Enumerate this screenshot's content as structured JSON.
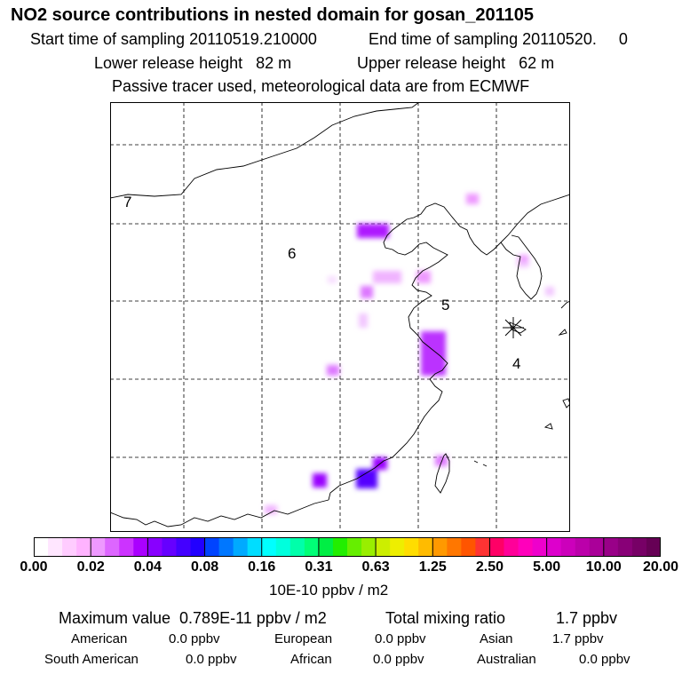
{
  "title": "NO2 source contributions in nested domain for gosan_201105",
  "sampling": {
    "start": "Start time of sampling 20110519.210000",
    "end": "End time of sampling 20110520.     0"
  },
  "release": {
    "lower": "Lower release height   82 m",
    "upper": "Upper release height   62 m"
  },
  "tracer_note": "Passive tracer used, meteorological data are from ECMWF",
  "map": {
    "region_labels": [
      "7",
      "6",
      "5",
      "4"
    ],
    "receptor_marker": "receptor-star-icon"
  },
  "color_scale": {
    "ticks": [
      "0.00",
      "0.02",
      "0.04",
      "0.08",
      "0.16",
      "0.31",
      "0.63",
      "1.25",
      "2.50",
      "5.00",
      "10.00",
      "20.00"
    ],
    "colors": [
      "#ffffff",
      "#ffe6ff",
      "#ffccff",
      "#ffb3ff",
      "#ee99ff",
      "#dd66ff",
      "#cc33ff",
      "#aa00ff",
      "#8800ff",
      "#6600ff",
      "#4400ff",
      "#2200ff",
      "#0044ff",
      "#0077ff",
      "#00aaff",
      "#00ddff",
      "#00ffff",
      "#00ffdd",
      "#00ffaa",
      "#00ff77",
      "#00ee44",
      "#22ee00",
      "#66ee00",
      "#99ee00",
      "#ccee00",
      "#eeee00",
      "#ffdd00",
      "#ffbb00",
      "#ff9900",
      "#ff7700",
      "#ff5500",
      "#ff3333",
      "#ff0066",
      "#ff0099",
      "#ff00bb",
      "#ee00cc",
      "#dd00cc",
      "#cc00bb",
      "#bb00aa",
      "#aa0099",
      "#990088",
      "#880077",
      "#770066",
      "#660055"
    ],
    "unit": "10E-10 ppbv / m2"
  },
  "summary": {
    "maximum": "Maximum value  0.789E-11 ppbv / m2",
    "total_label": "Total mixing ratio",
    "total_value": "1.7 ppbv"
  },
  "regions": [
    {
      "name": "American",
      "value": "0.0 ppbv"
    },
    {
      "name": "European",
      "value": "0.0 ppbv"
    },
    {
      "name": "Asian",
      "value": "1.7 ppbv"
    },
    {
      "name": "South American",
      "value": "0.0 ppbv"
    },
    {
      "name": "African",
      "value": "0.0 ppbv"
    },
    {
      "name": "Australian",
      "value": "0.0 ppbv"
    }
  ]
}
